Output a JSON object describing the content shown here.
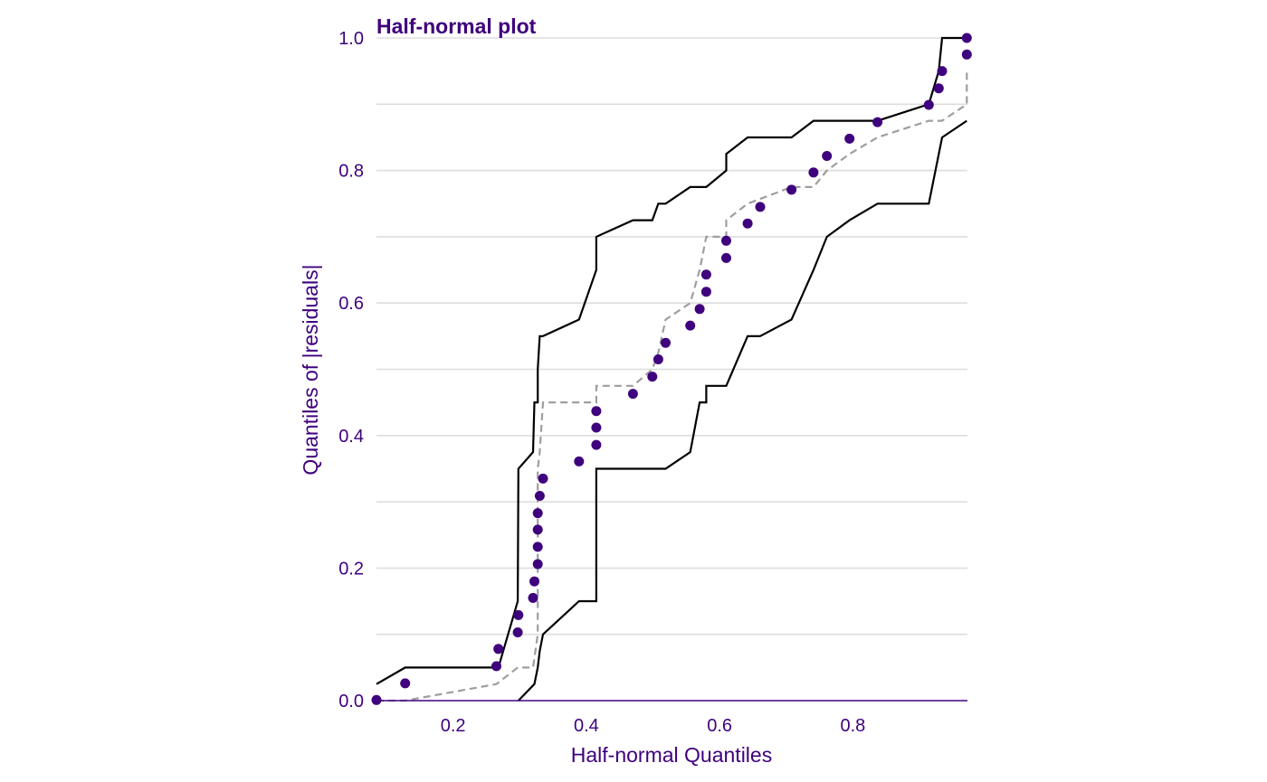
{
  "chart_data": {
    "type": "scatter",
    "title": "Half-normal plot",
    "xlabel": "Half-normal Quantiles",
    "ylabel": "Quantiles of |residuals|",
    "xlim": [
      0.085,
      0.972
    ],
    "ylim": [
      0,
      1.0
    ],
    "x_ticks": [
      0.2,
      0.4,
      0.6,
      0.8
    ],
    "x_tick_labels": [
      "0.2",
      "0.4",
      "0.6",
      "0.8"
    ],
    "y_ticks": [
      0,
      0.2,
      0.4,
      0.6,
      0.8,
      1.0
    ],
    "y_tick_labels": [
      "0.0",
      "0.2",
      "0.4",
      "0.6",
      "0.8",
      "1.0"
    ],
    "y_minor_grid": [
      0.1,
      0.3,
      0.5,
      0.7,
      0.9
    ],
    "grid": "horizontal",
    "legend": "none",
    "colors": {
      "points": "#3f007d",
      "envelope": "#000000",
      "median": "#9e9e9e",
      "grid": "#dddddd",
      "text": "#3f007d"
    },
    "points": [
      {
        "x": 0.085,
        "y": 0.001
      },
      {
        "x": 0.128,
        "y": 0.026
      },
      {
        "x": 0.265,
        "y": 0.052
      },
      {
        "x": 0.268,
        "y": 0.078
      },
      {
        "x": 0.297,
        "y": 0.103
      },
      {
        "x": 0.298,
        "y": 0.129
      },
      {
        "x": 0.32,
        "y": 0.155
      },
      {
        "x": 0.322,
        "y": 0.18
      },
      {
        "x": 0.327,
        "y": 0.206
      },
      {
        "x": 0.327,
        "y": 0.232
      },
      {
        "x": 0.327,
        "y": 0.258
      },
      {
        "x": 0.327,
        "y": 0.283
      },
      {
        "x": 0.33,
        "y": 0.309
      },
      {
        "x": 0.335,
        "y": 0.335
      },
      {
        "x": 0.389,
        "y": 0.361
      },
      {
        "x": 0.415,
        "y": 0.386
      },
      {
        "x": 0.415,
        "y": 0.412
      },
      {
        "x": 0.415,
        "y": 0.437
      },
      {
        "x": 0.47,
        "y": 0.463
      },
      {
        "x": 0.499,
        "y": 0.489
      },
      {
        "x": 0.508,
        "y": 0.515
      },
      {
        "x": 0.519,
        "y": 0.54
      },
      {
        "x": 0.556,
        "y": 0.566
      },
      {
        "x": 0.57,
        "y": 0.591
      },
      {
        "x": 0.58,
        "y": 0.617
      },
      {
        "x": 0.58,
        "y": 0.643
      },
      {
        "x": 0.61,
        "y": 0.668
      },
      {
        "x": 0.61,
        "y": 0.694
      },
      {
        "x": 0.642,
        "y": 0.72
      },
      {
        "x": 0.661,
        "y": 0.745
      },
      {
        "x": 0.708,
        "y": 0.771
      },
      {
        "x": 0.741,
        "y": 0.797
      },
      {
        "x": 0.761,
        "y": 0.822
      },
      {
        "x": 0.795,
        "y": 0.848
      },
      {
        "x": 0.837,
        "y": 0.873
      },
      {
        "x": 0.914,
        "y": 0.899
      },
      {
        "x": 0.929,
        "y": 0.924
      },
      {
        "x": 0.934,
        "y": 0.95
      },
      {
        "x": 0.971,
        "y": 0.975
      },
      {
        "x": 0.971,
        "y": 1.0
      }
    ],
    "envelope_upper": [
      [
        0.085,
        0.025
      ],
      [
        0.128,
        0.05
      ],
      [
        0.265,
        0.05
      ],
      [
        0.268,
        0.05
      ],
      [
        0.297,
        0.15
      ],
      [
        0.298,
        0.35
      ],
      [
        0.32,
        0.375
      ],
      [
        0.322,
        0.45
      ],
      [
        0.327,
        0.45
      ],
      [
        0.327,
        0.5
      ],
      [
        0.33,
        0.55
      ],
      [
        0.335,
        0.55
      ],
      [
        0.389,
        0.575
      ],
      [
        0.415,
        0.65
      ],
      [
        0.415,
        0.7
      ],
      [
        0.47,
        0.725
      ],
      [
        0.499,
        0.725
      ],
      [
        0.508,
        0.75
      ],
      [
        0.519,
        0.75
      ],
      [
        0.556,
        0.775
      ],
      [
        0.58,
        0.775
      ],
      [
        0.61,
        0.8
      ],
      [
        0.61,
        0.825
      ],
      [
        0.642,
        0.85
      ],
      [
        0.708,
        0.85
      ],
      [
        0.741,
        0.875
      ],
      [
        0.837,
        0.875
      ],
      [
        0.914,
        0.9
      ],
      [
        0.929,
        0.95
      ],
      [
        0.934,
        1.0
      ],
      [
        0.971,
        1.0
      ]
    ],
    "envelope_lower": [
      [
        0.298,
        0.0
      ],
      [
        0.322,
        0.025
      ],
      [
        0.327,
        0.05
      ],
      [
        0.33,
        0.075
      ],
      [
        0.335,
        0.1
      ],
      [
        0.389,
        0.15
      ],
      [
        0.415,
        0.15
      ],
      [
        0.415,
        0.35
      ],
      [
        0.47,
        0.35
      ],
      [
        0.519,
        0.35
      ],
      [
        0.556,
        0.375
      ],
      [
        0.57,
        0.45
      ],
      [
        0.58,
        0.45
      ],
      [
        0.58,
        0.475
      ],
      [
        0.61,
        0.475
      ],
      [
        0.642,
        0.55
      ],
      [
        0.661,
        0.55
      ],
      [
        0.708,
        0.575
      ],
      [
        0.741,
        0.65
      ],
      [
        0.761,
        0.7
      ],
      [
        0.795,
        0.725
      ],
      [
        0.837,
        0.75
      ],
      [
        0.914,
        0.75
      ],
      [
        0.934,
        0.85
      ],
      [
        0.971,
        0.875
      ]
    ],
    "median_line": [
      [
        0.085,
        0.0
      ],
      [
        0.128,
        0.0
      ],
      [
        0.265,
        0.025
      ],
      [
        0.297,
        0.05
      ],
      [
        0.32,
        0.05
      ],
      [
        0.327,
        0.1
      ],
      [
        0.327,
        0.35
      ],
      [
        0.33,
        0.375
      ],
      [
        0.335,
        0.45
      ],
      [
        0.415,
        0.45
      ],
      [
        0.415,
        0.475
      ],
      [
        0.47,
        0.475
      ],
      [
        0.499,
        0.5
      ],
      [
        0.508,
        0.525
      ],
      [
        0.519,
        0.575
      ],
      [
        0.556,
        0.6
      ],
      [
        0.57,
        0.65
      ],
      [
        0.58,
        0.7
      ],
      [
        0.61,
        0.7
      ],
      [
        0.61,
        0.725
      ],
      [
        0.642,
        0.75
      ],
      [
        0.708,
        0.775
      ],
      [
        0.741,
        0.775
      ],
      [
        0.761,
        0.8
      ],
      [
        0.795,
        0.825
      ],
      [
        0.837,
        0.85
      ],
      [
        0.914,
        0.875
      ],
      [
        0.934,
        0.875
      ],
      [
        0.971,
        0.9
      ],
      [
        0.971,
        0.95
      ]
    ]
  }
}
